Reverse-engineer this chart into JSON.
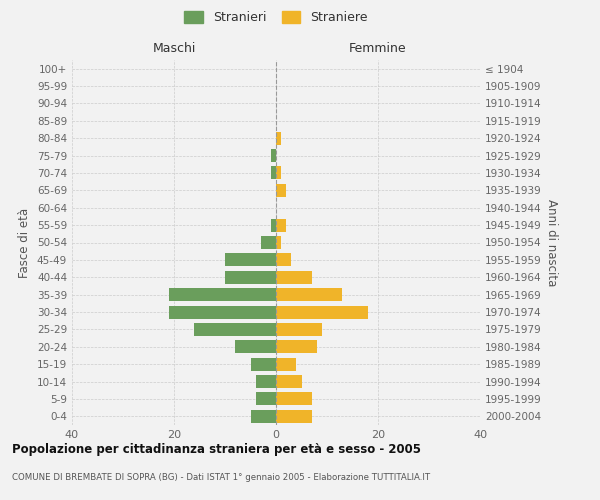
{
  "age_groups": [
    "100+",
    "95-99",
    "90-94",
    "85-89",
    "80-84",
    "75-79",
    "70-74",
    "65-69",
    "60-64",
    "55-59",
    "50-54",
    "45-49",
    "40-44",
    "35-39",
    "30-34",
    "25-29",
    "20-24",
    "15-19",
    "10-14",
    "5-9",
    "0-4"
  ],
  "birth_years": [
    "≤ 1904",
    "1905-1909",
    "1910-1914",
    "1915-1919",
    "1920-1924",
    "1925-1929",
    "1930-1934",
    "1935-1939",
    "1940-1944",
    "1945-1949",
    "1950-1954",
    "1955-1959",
    "1960-1964",
    "1965-1969",
    "1970-1974",
    "1975-1979",
    "1980-1984",
    "1985-1989",
    "1990-1994",
    "1995-1999",
    "2000-2004"
  ],
  "maschi": [
    0,
    0,
    0,
    0,
    0,
    1,
    1,
    0,
    0,
    1,
    3,
    10,
    10,
    21,
    21,
    16,
    8,
    5,
    4,
    4,
    5
  ],
  "femmine": [
    0,
    0,
    0,
    0,
    1,
    0,
    1,
    2,
    0,
    2,
    1,
    3,
    7,
    13,
    18,
    9,
    8,
    4,
    5,
    7,
    7
  ],
  "color_maschi": "#6a9e5c",
  "color_femmine": "#f0b429",
  "bg_color": "#f2f2f2",
  "xlim": 40,
  "title": "Popolazione per cittadinanza straniera per età e sesso - 2005",
  "subtitle": "COMUNE DI BREMBATE DI SOPRA (BG) - Dati ISTAT 1° gennaio 2005 - Elaborazione TUTTITALIA.IT",
  "ylabel_left": "Fasce di età",
  "ylabel_right": "Anni di nascita",
  "header_left": "Maschi",
  "header_right": "Femmine",
  "legend_maschi": "Stranieri",
  "legend_femmine": "Straniere"
}
